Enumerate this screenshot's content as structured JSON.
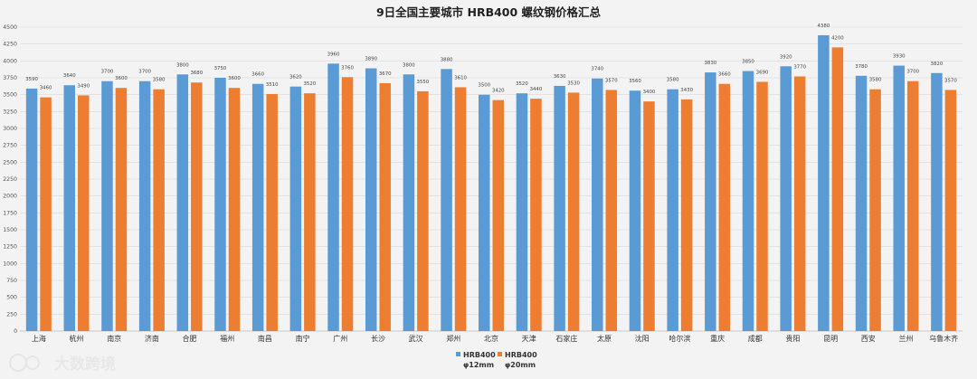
{
  "chart_data": {
    "type": "bar",
    "title": "9日全国主要城市 HRB400 螺纹钢价格汇总",
    "xlabel": "",
    "ylabel": "",
    "ylim": [
      0,
      4500
    ],
    "yticks": [
      0,
      250,
      500,
      750,
      1000,
      1250,
      1500,
      1750,
      2000,
      2250,
      2500,
      2750,
      3000,
      3250,
      3500,
      3750,
      4000,
      4250,
      4500
    ],
    "grid": true,
    "legend_position": "bottom-center",
    "categories": [
      "上海",
      "杭州",
      "南京",
      "济南",
      "合肥",
      "福州",
      "南昌",
      "南宁",
      "广州",
      "长沙",
      "武汉",
      "郑州",
      "北京",
      "天津",
      "石家庄",
      "太原",
      "沈阳",
      "哈尔滨",
      "重庆",
      "成都",
      "贵阳",
      "昆明",
      "西安",
      "兰州",
      "乌鲁木齐"
    ],
    "series": [
      {
        "name": "HRB400 φ12mm",
        "name_line1": "HRB400",
        "name_line2": "φ12mm",
        "color": "#5b9bd5",
        "values": [
          3590,
          3640,
          3700,
          3700,
          3800,
          3750,
          3660,
          3620,
          3960,
          3890,
          3800,
          3880,
          3500,
          3520,
          3630,
          3740,
          3560,
          3580,
          3830,
          3850,
          3920,
          4380,
          3780,
          3930,
          3820
        ]
      },
      {
        "name": "HRB400 φ20mm",
        "name_line1": "HRB400",
        "name_line2": "φ20mm",
        "color": "#ed7d31",
        "values": [
          3460,
          3490,
          3600,
          3580,
          3680,
          3600,
          3510,
          3520,
          3760,
          3670,
          3550,
          3610,
          3420,
          3440,
          3530,
          3570,
          3400,
          3430,
          3660,
          3690,
          3770,
          4200,
          3580,
          3700,
          3570
        ]
      }
    ]
  },
  "watermark": {
    "logo_text": "大数跨境"
  }
}
